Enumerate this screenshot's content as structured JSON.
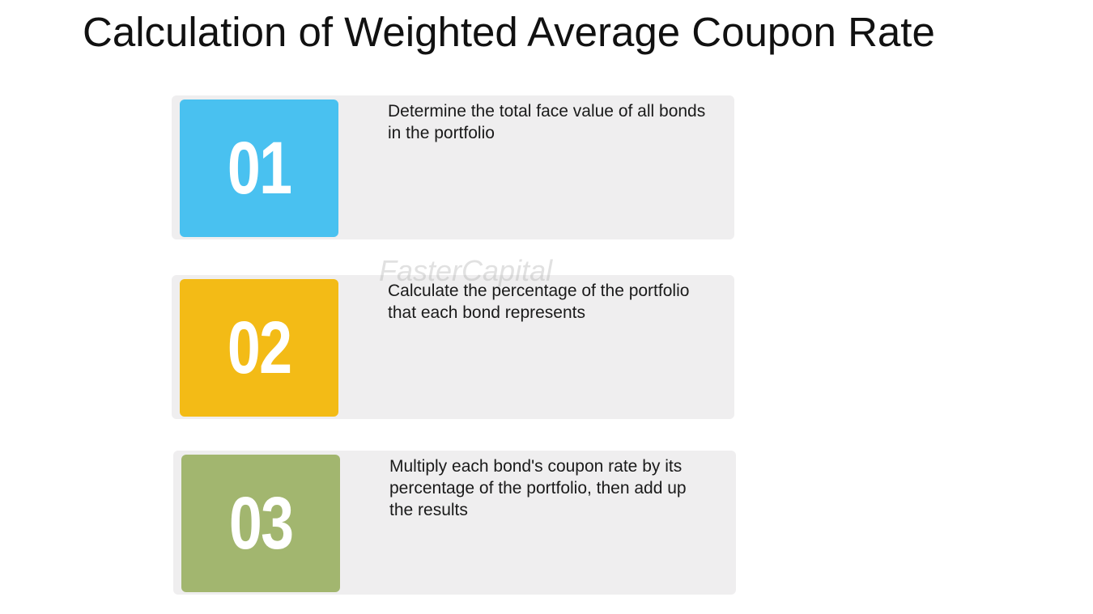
{
  "title": "Calculation of Weighted Average Coupon Rate",
  "watermark": "FasterCapital",
  "steps": [
    {
      "number": "01",
      "text": "Determine the total face value of all bonds in the portfolio",
      "color": "#49c1f0"
    },
    {
      "number": "02",
      "text": "Calculate the percentage of the portfolio that each bond represents",
      "color": "#f3bb16"
    },
    {
      "number": "03",
      "text": "Multiply each bond's coupon rate by its percentage of the portfolio, then add up the results",
      "color": "#a2b66f"
    }
  ]
}
